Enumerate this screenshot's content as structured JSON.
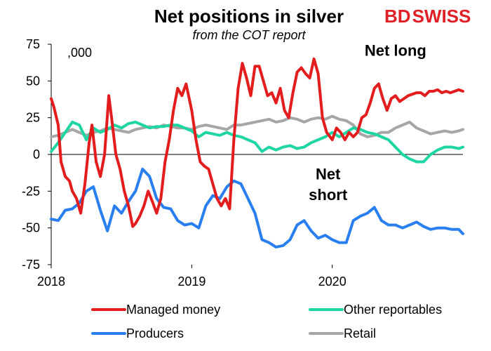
{
  "chart_data": {
    "type": "line",
    "title": "Net positions in silver",
    "subtitle": "from the COT report",
    "unit_label": ",000",
    "brand": {
      "part1": "BD",
      "part2": "SWISS",
      "color": "#e11f26"
    },
    "ylim": [
      -75,
      75
    ],
    "yticks": [
      75,
      50,
      25,
      0,
      -25,
      -50,
      -75
    ],
    "xlim": [
      2018.0,
      2020.93
    ],
    "xticks": [
      {
        "value": 2018.0,
        "label": "2018"
      },
      {
        "value": 2019.0,
        "label": "2019"
      },
      {
        "value": 2020.0,
        "label": "2020"
      }
    ],
    "annotations": [
      {
        "text": "Net long",
        "x": 2020.45,
        "y": 67
      },
      {
        "text": "Net",
        "x": 2019.97,
        "y": -17
      },
      {
        "text": "short",
        "x": 2019.97,
        "y": -31
      }
    ],
    "legend": {
      "position": "bottom"
    },
    "series": [
      {
        "name": "Managed money",
        "color": "#e31d1d",
        "x": [
          2018.0,
          2018.02,
          2018.05,
          2018.07,
          2018.1,
          2018.13,
          2018.15,
          2018.18,
          2018.21,
          2018.24,
          2018.27,
          2018.29,
          2018.32,
          2018.35,
          2018.38,
          2018.41,
          2018.43,
          2018.46,
          2018.49,
          2018.52,
          2018.55,
          2018.58,
          2018.6,
          2018.63,
          2018.66,
          2018.69,
          2018.72,
          2018.75,
          2018.78,
          2018.81,
          2018.84,
          2018.87,
          2018.9,
          2018.93,
          2018.96,
          2019.0,
          2019.03,
          2019.06,
          2019.09,
          2019.12,
          2019.15,
          2019.18,
          2019.21,
          2019.24,
          2019.27,
          2019.3,
          2019.33,
          2019.36,
          2019.39,
          2019.42,
          2019.45,
          2019.48,
          2019.51,
          2019.54,
          2019.57,
          2019.6,
          2019.63,
          2019.66,
          2019.69,
          2019.72,
          2019.75,
          2019.78,
          2019.81,
          2019.84,
          2019.87,
          2019.9,
          2019.93,
          2019.96,
          2020.0,
          2020.03,
          2020.06,
          2020.09,
          2020.12,
          2020.15,
          2020.18,
          2020.21,
          2020.24,
          2020.27,
          2020.3,
          2020.33,
          2020.36,
          2020.39,
          2020.42,
          2020.45,
          2020.48,
          2020.51,
          2020.54,
          2020.57,
          2020.6,
          2020.63,
          2020.66,
          2020.69,
          2020.72,
          2020.75,
          2020.78,
          2020.81,
          2020.84,
          2020.87,
          2020.9,
          2020.93
        ],
        "values": [
          38,
          32,
          20,
          -5,
          -15,
          -18,
          -25,
          -30,
          -40,
          -20,
          8,
          20,
          -5,
          -15,
          0,
          40,
          25,
          0,
          -10,
          -25,
          -35,
          -49,
          -47,
          -42,
          -35,
          -25,
          -32,
          -40,
          -30,
          -5,
          10,
          30,
          45,
          40,
          48,
          30,
          10,
          -5,
          -8,
          -10,
          -20,
          -30,
          -35,
          -30,
          -37,
          10,
          45,
          62,
          52,
          40,
          60,
          60,
          50,
          40,
          42,
          35,
          45,
          30,
          25,
          42,
          56,
          59,
          55,
          52,
          65,
          55,
          25,
          15,
          10,
          18,
          15,
          10,
          15,
          12,
          15,
          25,
          27,
          35,
          45,
          48,
          38,
          30,
          38,
          40,
          36,
          38,
          40,
          41,
          42,
          42,
          40,
          43,
          43,
          44,
          42,
          43,
          42,
          43,
          44,
          43
        ]
      },
      {
        "name": "Other reportables",
        "color": "#1ed6a3",
        "x": [
          2018.0,
          2018.05,
          2018.1,
          2018.15,
          2018.2,
          2018.25,
          2018.3,
          2018.35,
          2018.4,
          2018.45,
          2018.5,
          2018.55,
          2018.6,
          2018.65,
          2018.7,
          2018.75,
          2018.8,
          2018.85,
          2018.9,
          2018.95,
          2019.0,
          2019.05,
          2019.1,
          2019.15,
          2019.2,
          2019.25,
          2019.3,
          2019.35,
          2019.4,
          2019.45,
          2019.5,
          2019.55,
          2019.6,
          2019.65,
          2019.7,
          2019.75,
          2019.8,
          2019.85,
          2019.9,
          2019.95,
          2020.0,
          2020.05,
          2020.1,
          2020.15,
          2020.2,
          2020.25,
          2020.3,
          2020.35,
          2020.4,
          2020.45,
          2020.5,
          2020.55,
          2020.6,
          2020.65,
          2020.7,
          2020.75,
          2020.8,
          2020.85,
          2020.9,
          2020.93
        ],
        "values": [
          2,
          8,
          15,
          22,
          20,
          10,
          18,
          15,
          17,
          20,
          18,
          21,
          22,
          20,
          18,
          19,
          19,
          20,
          20,
          18,
          16,
          12,
          15,
          14,
          13,
          15,
          13,
          12,
          10,
          8,
          2,
          5,
          3,
          5,
          6,
          4,
          5,
          8,
          10,
          12,
          15,
          12,
          15,
          18,
          17,
          15,
          14,
          12,
          10,
          5,
          0,
          -3,
          -5,
          -5,
          0,
          3,
          5,
          5,
          4,
          5
        ]
      },
      {
        "name": "Producers",
        "color": "#2a7ff0",
        "x": [
          2018.0,
          2018.05,
          2018.1,
          2018.15,
          2018.2,
          2018.25,
          2018.3,
          2018.35,
          2018.4,
          2018.45,
          2018.5,
          2018.55,
          2018.6,
          2018.65,
          2018.7,
          2018.75,
          2018.8,
          2018.85,
          2018.9,
          2018.95,
          2019.0,
          2019.05,
          2019.1,
          2019.15,
          2019.2,
          2019.25,
          2019.3,
          2019.35,
          2019.4,
          2019.45,
          2019.5,
          2019.55,
          2019.6,
          2019.65,
          2019.7,
          2019.75,
          2019.8,
          2019.85,
          2019.9,
          2019.95,
          2020.0,
          2020.05,
          2020.1,
          2020.15,
          2020.2,
          2020.25,
          2020.3,
          2020.35,
          2020.4,
          2020.45,
          2020.5,
          2020.55,
          2020.6,
          2020.65,
          2020.7,
          2020.75,
          2020.8,
          2020.85,
          2020.9,
          2020.93
        ],
        "values": [
          -44,
          -45,
          -38,
          -37,
          -33,
          -25,
          -22,
          -38,
          -52,
          -35,
          -40,
          -32,
          -25,
          -10,
          -15,
          -30,
          -36,
          -37,
          -45,
          -48,
          -47,
          -50,
          -35,
          -28,
          -30,
          -22,
          -18,
          -20,
          -30,
          -40,
          -58,
          -60,
          -63,
          -62,
          -58,
          -48,
          -45,
          -52,
          -57,
          -55,
          -58,
          -60,
          -60,
          -45,
          -42,
          -40,
          -36,
          -45,
          -48,
          -48,
          -50,
          -48,
          -46,
          -49,
          -51,
          -50,
          -50,
          -51,
          -51,
          -54
        ]
      },
      {
        "name": "Retail",
        "color": "#a6a6a6",
        "x": [
          2018.0,
          2018.05,
          2018.1,
          2018.15,
          2018.2,
          2018.25,
          2018.3,
          2018.35,
          2018.4,
          2018.45,
          2018.5,
          2018.55,
          2018.6,
          2018.65,
          2018.7,
          2018.75,
          2018.8,
          2018.85,
          2018.9,
          2018.95,
          2019.0,
          2019.05,
          2019.1,
          2019.15,
          2019.2,
          2019.25,
          2019.3,
          2019.35,
          2019.4,
          2019.45,
          2019.5,
          2019.55,
          2019.6,
          2019.65,
          2019.7,
          2019.75,
          2019.8,
          2019.85,
          2019.9,
          2019.95,
          2020.0,
          2020.05,
          2020.1,
          2020.15,
          2020.2,
          2020.25,
          2020.3,
          2020.35,
          2020.4,
          2020.45,
          2020.5,
          2020.55,
          2020.6,
          2020.65,
          2020.7,
          2020.75,
          2020.8,
          2020.85,
          2020.9,
          2020.93
        ],
        "values": [
          12,
          13,
          15,
          17,
          15,
          13,
          15,
          16,
          18,
          17,
          16,
          15,
          17,
          18,
          19,
          18,
          20,
          19,
          18,
          18,
          17,
          19,
          20,
          19,
          18,
          17,
          20,
          20,
          21,
          22,
          23,
          24,
          22,
          23,
          25,
          24,
          22,
          24,
          25,
          24,
          26,
          24,
          23,
          20,
          14,
          12,
          13,
          15,
          15,
          18,
          20,
          22,
          18,
          16,
          14,
          15,
          16,
          15,
          16,
          17
        ]
      }
    ]
  }
}
